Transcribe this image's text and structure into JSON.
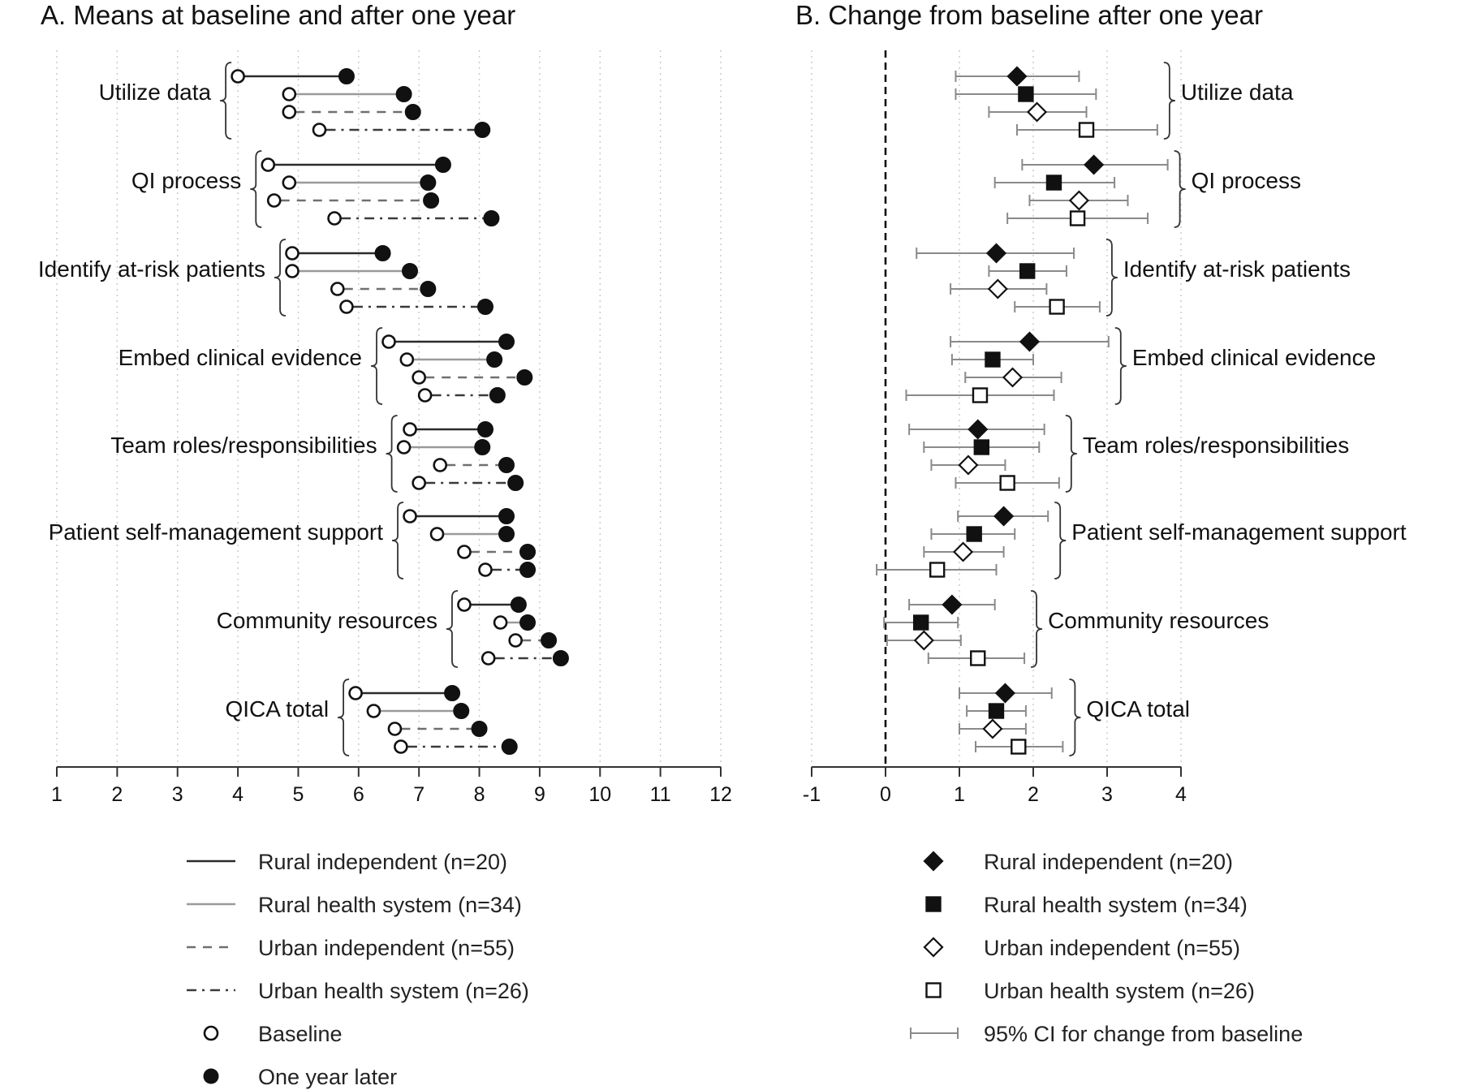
{
  "chart_data": [
    {
      "type": "dumbbell",
      "title": "A. Means at baseline and after one year",
      "xlim": [
        1,
        12
      ],
      "xticks": [
        1,
        2,
        3,
        4,
        5,
        6,
        7,
        8,
        9,
        10,
        11,
        12
      ],
      "grid": "vertical dotted",
      "categories": [
        "Utilize data",
        "QI process",
        "Identify at-risk patients",
        "Embed clinical evidence",
        "Team roles/responsibilities",
        "Patient self-management support",
        "Community resources",
        "QICA total"
      ],
      "series": [
        {
          "name": "Rural independent (n=20)",
          "line": "solid-dark",
          "baseline": [
            4.0,
            4.5,
            4.9,
            6.5,
            6.85,
            6.85,
            7.75,
            5.95
          ],
          "one_year": [
            5.8,
            7.4,
            6.4,
            8.45,
            8.1,
            8.45,
            8.65,
            7.55
          ]
        },
        {
          "name": "Rural health system (n=34)",
          "line": "solid-light",
          "baseline": [
            4.85,
            4.85,
            4.9,
            6.8,
            6.75,
            7.3,
            8.35,
            6.25
          ],
          "one_year": [
            6.75,
            7.15,
            6.85,
            8.25,
            8.05,
            8.45,
            8.8,
            7.7
          ]
        },
        {
          "name": "Urban independent (n=55)",
          "line": "dashed",
          "baseline": [
            4.85,
            4.6,
            5.65,
            7.0,
            7.35,
            7.75,
            8.6,
            6.6
          ],
          "one_year": [
            6.9,
            7.2,
            7.15,
            8.75,
            8.45,
            8.8,
            9.15,
            8.0
          ]
        },
        {
          "name": "Urban health system (n=26)",
          "line": "dash-dot",
          "baseline": [
            5.35,
            5.6,
            5.8,
            7.1,
            7.0,
            8.1,
            8.15,
            6.7
          ],
          "one_year": [
            8.05,
            8.2,
            8.1,
            8.3,
            8.6,
            8.8,
            9.35,
            8.5
          ]
        }
      ],
      "legend": [
        {
          "label": "Rural independent (n=20)",
          "symbol": "line-solid-dark"
        },
        {
          "label": "Rural health system (n=34)",
          "symbol": "line-solid-light"
        },
        {
          "label": "Urban independent (n=55)",
          "symbol": "line-dashed"
        },
        {
          "label": "Urban health system (n=26)",
          "symbol": "line-dash-dot"
        },
        {
          "label": "Baseline",
          "symbol": "open-circle"
        },
        {
          "label": "One year later",
          "symbol": "filled-circle"
        }
      ]
    },
    {
      "type": "forest",
      "title": "B. Change from baseline after one year",
      "xlim": [
        -1,
        4
      ],
      "xticks": [
        -1,
        0,
        1,
        2,
        3,
        4
      ],
      "xtick_labels": [
        "-1",
        "0",
        "1",
        "2",
        "3",
        "4"
      ],
      "reference_line": 0,
      "grid": "vertical dotted",
      "categories": [
        "Utilize data",
        "QI process",
        "Identify at-risk patients",
        "Embed clinical evidence",
        "Team roles/responsibilities",
        "Patient self-management support",
        "Community resources",
        "QICA total"
      ],
      "series": [
        {
          "name": "Rural independent (n=20)",
          "marker": "filled-diamond",
          "estimate": [
            1.78,
            2.82,
            1.5,
            1.95,
            1.25,
            1.6,
            0.9,
            1.62
          ],
          "ci_low": [
            0.95,
            1.85,
            0.42,
            0.88,
            0.32,
            0.98,
            0.32,
            1.0
          ],
          "ci_high": [
            2.62,
            3.82,
            2.55,
            3.02,
            2.15,
            2.2,
            1.48,
            2.25
          ]
        },
        {
          "name": "Rural health system (n=34)",
          "marker": "filled-square",
          "estimate": [
            1.9,
            2.28,
            1.92,
            1.45,
            1.3,
            1.2,
            0.48,
            1.5
          ],
          "ci_low": [
            0.95,
            1.48,
            1.4,
            0.9,
            0.52,
            0.62,
            -0.02,
            1.1
          ],
          "ci_high": [
            2.85,
            3.1,
            2.45,
            2.0,
            2.08,
            1.75,
            0.98,
            1.9
          ]
        },
        {
          "name": "Urban independent (n=55)",
          "marker": "open-diamond",
          "estimate": [
            2.05,
            2.62,
            1.52,
            1.72,
            1.12,
            1.05,
            0.52,
            1.45
          ],
          "ci_low": [
            1.4,
            1.95,
            0.88,
            1.08,
            0.62,
            0.52,
            0.02,
            1.0
          ],
          "ci_high": [
            2.72,
            3.28,
            2.18,
            2.38,
            1.62,
            1.6,
            1.02,
            1.9
          ]
        },
        {
          "name": "Urban health system (n=26)",
          "marker": "open-square",
          "estimate": [
            2.72,
            2.6,
            2.32,
            1.28,
            1.65,
            0.7,
            1.25,
            1.8
          ],
          "ci_low": [
            1.78,
            1.65,
            1.75,
            0.28,
            0.95,
            -0.12,
            0.58,
            1.22
          ],
          "ci_high": [
            3.68,
            3.55,
            2.9,
            2.28,
            2.35,
            1.5,
            1.88,
            2.4
          ]
        }
      ],
      "legend": [
        {
          "label": "Rural independent (n=20)",
          "symbol": "filled-diamond"
        },
        {
          "label": "Rural health system (n=34)",
          "symbol": "filled-square"
        },
        {
          "label": "Urban independent (n=55)",
          "symbol": "open-diamond"
        },
        {
          "label": "Urban health system (n=26)",
          "symbol": "open-square"
        },
        {
          "label": "95% CI for change from baseline",
          "symbol": "ci-bar"
        }
      ]
    }
  ]
}
